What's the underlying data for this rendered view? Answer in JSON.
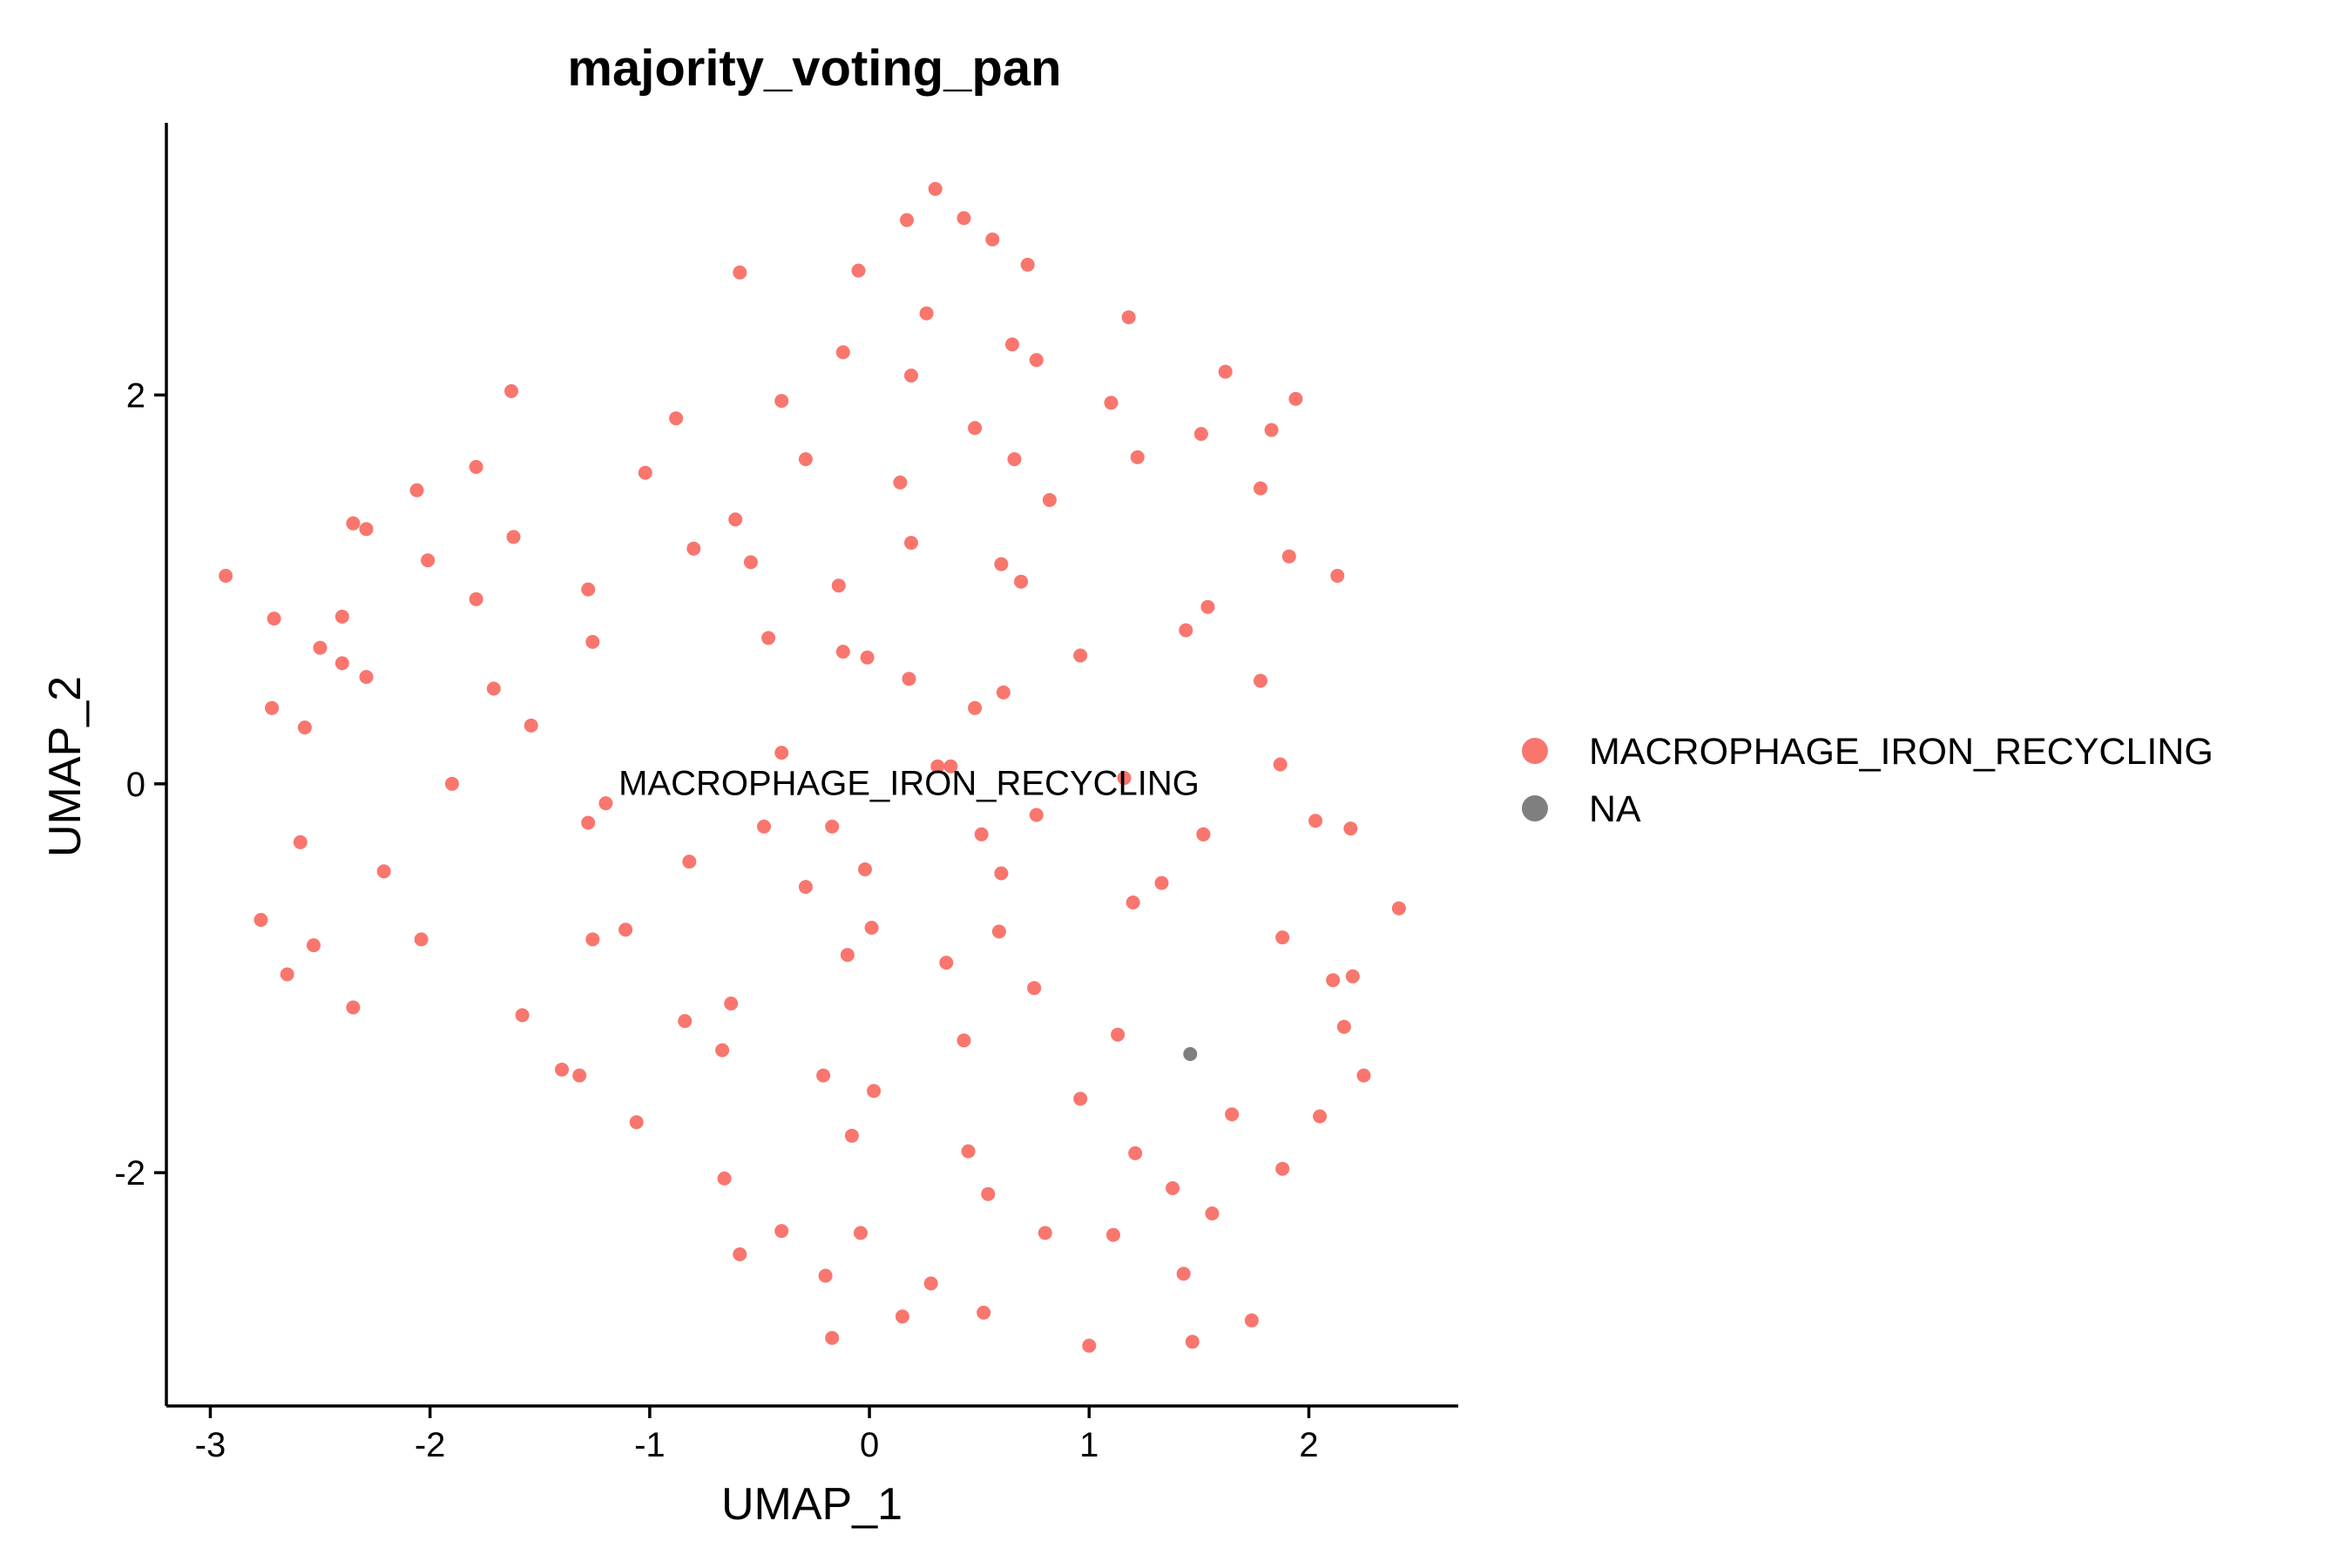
{
  "chart_data": {
    "type": "scatter",
    "title": "majority_voting_pan",
    "xlabel": "UMAP_1",
    "ylabel": "UMAP_2",
    "xlim": [
      -3.2,
      2.68
    ],
    "ylim": [
      -3.2,
      3.4
    ],
    "xticks": [
      -3,
      -2,
      -1,
      0,
      1,
      2
    ],
    "yticks": [
      -2,
      0,
      2
    ],
    "xtick_labels": [
      "-3",
      "-2",
      "-1",
      "0",
      "1",
      "2"
    ],
    "ytick_labels": [
      "-2",
      "0",
      "2"
    ],
    "grid": false,
    "legend_position": "right",
    "cluster_label": {
      "text": "MACROPHAGE_IRON_RECYCLING",
      "x": 0.18,
      "y": -0.01
    },
    "series": [
      {
        "name": "MACROPHAGE_IRON_RECYCLING",
        "color": "#F8766D",
        "points": [
          [
            -2.93,
            1.07
          ],
          [
            -2.71,
            0.85
          ],
          [
            -2.72,
            0.39
          ],
          [
            -2.77,
            -0.7
          ],
          [
            -2.65,
            -0.98
          ],
          [
            -2.57,
            0.29
          ],
          [
            -2.59,
            -0.3
          ],
          [
            -2.53,
            -0.83
          ],
          [
            -2.5,
            0.7
          ],
          [
            -2.4,
            0.86
          ],
          [
            -2.4,
            0.62
          ],
          [
            -2.35,
            1.34
          ],
          [
            -2.35,
            -1.15
          ],
          [
            -2.29,
            1.31
          ],
          [
            -2.29,
            0.55
          ],
          [
            -2.21,
            -0.45
          ],
          [
            -2.06,
            1.51
          ],
          [
            -2.04,
            -0.8
          ],
          [
            -2.01,
            1.15
          ],
          [
            -1.9,
            0.0
          ],
          [
            -1.79,
            1.63
          ],
          [
            -1.79,
            0.95
          ],
          [
            -1.71,
            0.49
          ],
          [
            -1.63,
            2.02
          ],
          [
            -1.62,
            1.27
          ],
          [
            -1.58,
            -1.19
          ],
          [
            -1.54,
            0.3
          ],
          [
            -1.4,
            -1.47
          ],
          [
            -1.32,
            -1.5
          ],
          [
            -1.28,
            1.0
          ],
          [
            -1.28,
            -0.2
          ],
          [
            -1.26,
            0.73
          ],
          [
            -1.26,
            -0.8
          ],
          [
            -1.2,
            -0.1
          ],
          [
            -1.11,
            -0.75
          ],
          [
            -1.06,
            -1.74
          ],
          [
            -1.02,
            1.6
          ],
          [
            -0.88,
            1.88
          ],
          [
            -0.84,
            -1.22
          ],
          [
            -0.82,
            -0.4
          ],
          [
            -0.8,
            1.21
          ],
          [
            -0.67,
            -1.37
          ],
          [
            -0.66,
            -2.03
          ],
          [
            -0.63,
            -1.13
          ],
          [
            -0.61,
            1.36
          ],
          [
            -0.59,
            2.63
          ],
          [
            -0.59,
            -2.42
          ],
          [
            -0.54,
            1.14
          ],
          [
            -0.48,
            -0.22
          ],
          [
            -0.46,
            0.75
          ],
          [
            -0.4,
            1.97
          ],
          [
            -0.4,
            0.16
          ],
          [
            -0.4,
            -2.3
          ],
          [
            -0.29,
            1.67
          ],
          [
            -0.29,
            -0.53
          ],
          [
            -0.21,
            -1.5
          ],
          [
            -0.2,
            -2.53
          ],
          [
            -0.17,
            -0.22
          ],
          [
            -0.17,
            -2.85
          ],
          [
            -0.14,
            1.02
          ],
          [
            -0.12,
            2.22
          ],
          [
            -0.12,
            0.68
          ],
          [
            -0.1,
            -0.88
          ],
          [
            -0.08,
            -1.81
          ],
          [
            -0.05,
            2.64
          ],
          [
            -0.04,
            -2.31
          ],
          [
            -0.02,
            -0.44
          ],
          [
            -0.01,
            0.65
          ],
          [
            0.01,
            -0.74
          ],
          [
            0.02,
            -1.58
          ],
          [
            0.14,
            1.55
          ],
          [
            0.15,
            -2.74
          ],
          [
            0.17,
            2.9
          ],
          [
            0.18,
            0.54
          ],
          [
            0.19,
            2.1
          ],
          [
            0.19,
            1.24
          ],
          [
            0.26,
            2.42
          ],
          [
            0.28,
            -2.57
          ],
          [
            0.3,
            3.06
          ],
          [
            0.31,
            0.09
          ],
          [
            0.35,
            -0.92
          ],
          [
            0.37,
            0.09
          ],
          [
            0.43,
            2.91
          ],
          [
            0.43,
            -1.32
          ],
          [
            0.45,
            -1.89
          ],
          [
            0.48,
            1.83
          ],
          [
            0.48,
            0.39
          ],
          [
            0.51,
            -0.26
          ],
          [
            0.52,
            -2.72
          ],
          [
            0.54,
            -2.11
          ],
          [
            0.56,
            2.8
          ],
          [
            0.59,
            -0.76
          ],
          [
            0.6,
            -0.46
          ],
          [
            0.6,
            1.13
          ],
          [
            0.61,
            0.47
          ],
          [
            0.65,
            2.26
          ],
          [
            0.66,
            1.67
          ],
          [
            0.69,
            1.04
          ],
          [
            0.72,
            2.67
          ],
          [
            0.75,
            -1.05
          ],
          [
            0.76,
            2.18
          ],
          [
            0.76,
            -0.16
          ],
          [
            0.8,
            -2.31
          ],
          [
            0.82,
            1.46
          ],
          [
            0.96,
            0.66
          ],
          [
            0.96,
            -1.62
          ],
          [
            1.0,
            -2.89
          ],
          [
            1.1,
            1.96
          ],
          [
            1.11,
            -2.32
          ],
          [
            1.13,
            -1.29
          ],
          [
            1.16,
            0.03
          ],
          [
            1.18,
            2.4
          ],
          [
            1.2,
            -0.61
          ],
          [
            1.21,
            -1.9
          ],
          [
            1.22,
            1.68
          ],
          [
            1.33,
            -0.51
          ],
          [
            1.38,
            -2.08
          ],
          [
            1.43,
            -2.52
          ],
          [
            1.44,
            0.79
          ],
          [
            1.47,
            -2.87
          ],
          [
            1.51,
            1.8
          ],
          [
            1.52,
            -0.26
          ],
          [
            1.52,
            -0.26
          ],
          [
            1.54,
            0.91
          ],
          [
            1.56,
            -2.21
          ],
          [
            1.62,
            2.12
          ],
          [
            1.65,
            -1.7
          ],
          [
            1.74,
            -2.76
          ],
          [
            1.78,
            1.52
          ],
          [
            1.78,
            0.53
          ],
          [
            1.83,
            1.82
          ],
          [
            1.87,
            0.1
          ],
          [
            1.88,
            -0.79
          ],
          [
            1.88,
            -1.98
          ],
          [
            1.91,
            1.17
          ],
          [
            1.94,
            1.98
          ],
          [
            2.03,
            -0.19
          ],
          [
            2.05,
            -1.71
          ],
          [
            2.11,
            -1.01
          ],
          [
            2.13,
            1.07
          ],
          [
            2.16,
            -1.25
          ],
          [
            2.19,
            -0.23
          ],
          [
            2.2,
            -0.99
          ],
          [
            2.25,
            -1.5
          ],
          [
            2.41,
            -0.64
          ]
        ]
      },
      {
        "name": "NA",
        "color": "#7F7F7F",
        "points": [
          [
            1.46,
            -1.39
          ]
        ]
      }
    ]
  }
}
